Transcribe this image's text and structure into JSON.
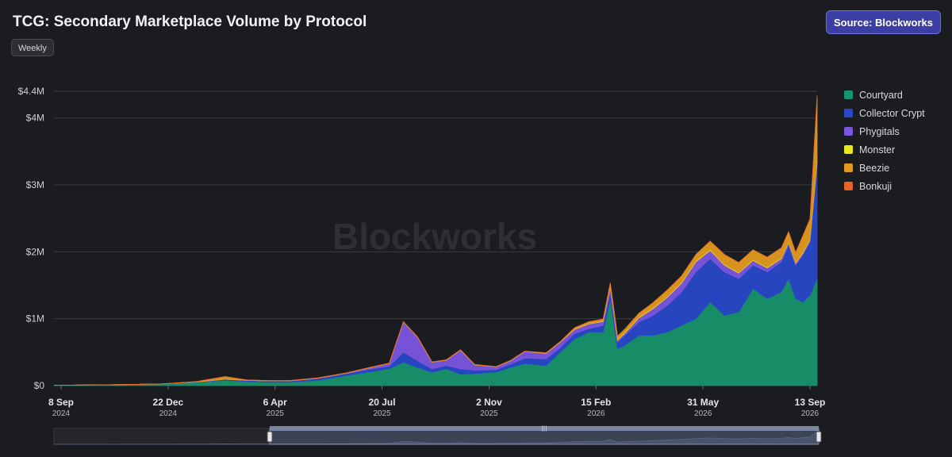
{
  "header": {
    "title": "TCG: Secondary Marketplace Volume by Protocol",
    "interval_label": "Weekly",
    "source_label": "Source: Blockworks"
  },
  "watermark": "Blockworks",
  "colors": {
    "background": "#1b1c20",
    "grid": "#3a3b41",
    "accent": "#3b3fa3",
    "navigator_fill": "#3a4258",
    "navigator_window": "#5a6884"
  },
  "chart_data": {
    "type": "area",
    "stacked": true,
    "y_axis": {
      "min": 0,
      "max": 4400000,
      "ticks": [
        {
          "value": 0,
          "label": "$0"
        },
        {
          "value": 1000000,
          "label": "$1M"
        },
        {
          "value": 2000000,
          "label": "$2M"
        },
        {
          "value": 3000000,
          "label": "$3M"
        },
        {
          "value": 4000000,
          "label": "$4M"
        },
        {
          "value": 4400000,
          "label": "$4.4M"
        }
      ]
    },
    "x_axis": {
      "start": "2024-09-01",
      "end": "2026-09-20",
      "ticks": [
        {
          "date": "2024-09-08",
          "day": "8 Sep",
          "year": "2024"
        },
        {
          "date": "2024-12-22",
          "day": "22 Dec",
          "year": "2024"
        },
        {
          "date": "2025-04-06",
          "day": "6 Apr",
          "year": "2025"
        },
        {
          "date": "2025-07-20",
          "day": "20 Jul",
          "year": "2025"
        },
        {
          "date": "2025-11-02",
          "day": "2 Nov",
          "year": "2025"
        },
        {
          "date": "2026-02-15",
          "day": "15 Feb",
          "year": "2026"
        },
        {
          "date": "2026-05-31",
          "day": "31 May",
          "year": "2026"
        },
        {
          "date": "2026-09-13",
          "day": "13 Sep",
          "year": "2026"
        }
      ]
    },
    "grid": true,
    "legend_position": "right",
    "x": [
      "2024-09-01",
      "2024-10-06",
      "2024-11-10",
      "2024-12-15",
      "2025-01-19",
      "2025-02-16",
      "2025-03-09",
      "2025-03-30",
      "2025-04-20",
      "2025-05-18",
      "2025-06-15",
      "2025-07-06",
      "2025-07-27",
      "2025-08-10",
      "2025-08-24",
      "2025-09-07",
      "2025-09-21",
      "2025-10-05",
      "2025-10-19",
      "2025-11-09",
      "2025-11-23",
      "2025-12-07",
      "2025-12-28",
      "2026-01-11",
      "2026-01-25",
      "2026-02-08",
      "2026-02-22",
      "2026-03-01",
      "2026-03-08",
      "2026-03-15",
      "2026-03-29",
      "2026-04-12",
      "2026-04-26",
      "2026-05-10",
      "2026-05-24",
      "2026-06-07",
      "2026-06-21",
      "2026-07-05",
      "2026-07-19",
      "2026-08-02",
      "2026-08-16",
      "2026-08-23",
      "2026-08-30",
      "2026-09-06",
      "2026-09-13",
      "2026-09-20"
    ],
    "series": [
      {
        "name": "Courtyard",
        "color": "#16946a",
        "values": [
          5000,
          10000,
          15000,
          25000,
          50000,
          80000,
          60000,
          50000,
          50000,
          80000,
          150000,
          200000,
          250000,
          350000,
          270000,
          200000,
          250000,
          170000,
          180000,
          200000,
          270000,
          330000,
          300000,
          500000,
          700000,
          800000,
          800000,
          1300000,
          550000,
          600000,
          750000,
          750000,
          800000,
          900000,
          1000000,
          1250000,
          1050000,
          1100000,
          1450000,
          1300000,
          1400000,
          1600000,
          1300000,
          1250000,
          1350000,
          1600000
        ]
      },
      {
        "name": "Collector Crypt",
        "color": "#2848c8",
        "values": [
          0,
          0,
          0,
          0,
          5000,
          15000,
          20000,
          20000,
          20000,
          30000,
          30000,
          40000,
          40000,
          150000,
          100000,
          50000,
          50000,
          80000,
          50000,
          40000,
          50000,
          80000,
          100000,
          70000,
          80000,
          50000,
          100000,
          100000,
          100000,
          150000,
          200000,
          300000,
          400000,
          500000,
          700000,
          650000,
          650000,
          500000,
          350000,
          400000,
          450000,
          500000,
          500000,
          700000,
          800000,
          1700000
        ]
      },
      {
        "name": "Phygitals",
        "color": "#7a55e0",
        "values": [
          0,
          0,
          0,
          0,
          0,
          0,
          0,
          0,
          0,
          0,
          5000,
          20000,
          40000,
          450000,
          350000,
          100000,
          80000,
          280000,
          80000,
          40000,
          50000,
          100000,
          80000,
          80000,
          60000,
          70000,
          60000,
          80000,
          30000,
          30000,
          60000,
          100000,
          120000,
          130000,
          150000,
          120000,
          100000,
          80000,
          70000,
          60000,
          50000,
          40000,
          30000,
          30000,
          30000,
          50000
        ]
      },
      {
        "name": "Monster",
        "color": "#e8e81a",
        "values": [
          0,
          0,
          0,
          0,
          0,
          0,
          0,
          0,
          0,
          0,
          0,
          0,
          0,
          0,
          0,
          0,
          0,
          0,
          0,
          0,
          0,
          0,
          0,
          0,
          5000,
          5000,
          5000,
          5000,
          10000,
          10000,
          10000,
          10000,
          10000,
          10000,
          10000,
          10000,
          10000,
          10000,
          10000,
          10000,
          10000,
          10000,
          10000,
          10000,
          10000,
          15000
        ]
      },
      {
        "name": "Beezie",
        "color": "#e09a1e",
        "values": [
          0,
          0,
          0,
          0,
          5000,
          40000,
          5000,
          5000,
          5000,
          5000,
          5000,
          5000,
          5000,
          5000,
          5000,
          5000,
          5000,
          5000,
          5000,
          5000,
          5000,
          5000,
          10000,
          10000,
          20000,
          30000,
          30000,
          50000,
          50000,
          50000,
          60000,
          80000,
          100000,
          100000,
          100000,
          130000,
          150000,
          150000,
          150000,
          150000,
          150000,
          150000,
          150000,
          250000,
          300000,
          950000
        ]
      },
      {
        "name": "Bonkuji",
        "color": "#e8622a",
        "values": [
          0,
          0,
          0,
          0,
          0,
          0,
          0,
          0,
          0,
          0,
          0,
          0,
          0,
          0,
          0,
          0,
          0,
          0,
          0,
          0,
          0,
          0,
          0,
          0,
          0,
          0,
          0,
          0,
          0,
          0,
          0,
          0,
          0,
          0,
          0,
          0,
          0,
          0,
          0,
          0,
          0,
          0,
          0,
          0,
          0,
          20000
        ]
      }
    ]
  }
}
